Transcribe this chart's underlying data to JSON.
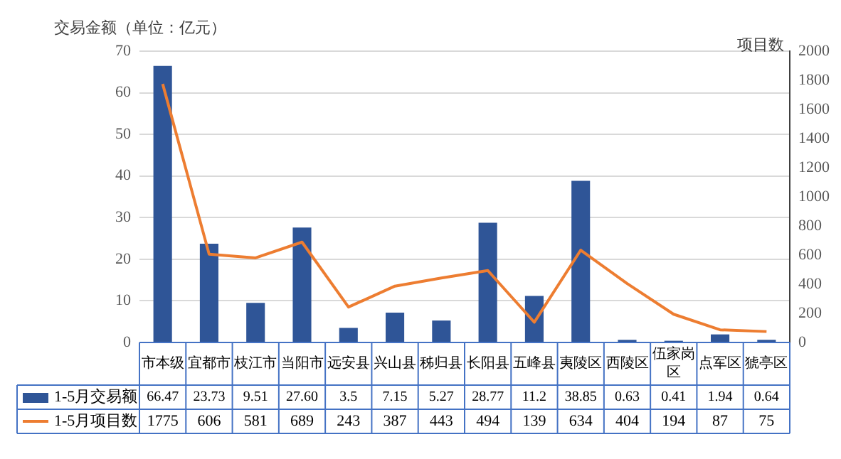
{
  "chart_data": {
    "type": "bar",
    "ylabel": "交易金额（单位：亿元）",
    "y2label": "项目数",
    "categories": [
      "市本级",
      "宜都市",
      "枝江市",
      "当阳市",
      "远安县",
      "兴山县",
      "秭归县",
      "长阳县",
      "五峰县",
      "夷陵区",
      "西陵区",
      "伍家岗区",
      "点军区",
      "猇亭区"
    ],
    "series": [
      {
        "name": "1-5月交易额",
        "color": "#2f5597",
        "values": [
          66.47,
          23.73,
          9.51,
          27.6,
          3.5,
          7.15,
          5.27,
          28.77,
          11.2,
          38.85,
          0.63,
          0.41,
          1.94,
          0.64
        ],
        "value_labels": [
          "66.47",
          "23.73",
          "9.51",
          "27.60",
          "3.5",
          "7.15",
          "5.27",
          "28.77",
          "11.2",
          "38.85",
          "0.63",
          "0.41",
          "1.94",
          "0.64"
        ]
      },
      {
        "name": "1-5月项目数",
        "type": "line",
        "axis": "y2",
        "color": "#ed7d31",
        "values": [
          1775,
          606,
          581,
          689,
          243,
          387,
          443,
          494,
          139,
          634,
          404,
          194,
          87,
          75
        ],
        "value_labels": [
          "1775",
          "606",
          "581",
          "689",
          "243",
          "387",
          "443",
          "494",
          "139",
          "634",
          "404",
          "194",
          "87",
          "75"
        ]
      }
    ],
    "ylim": [
      0,
      70
    ],
    "yticks": [
      0,
      10,
      20,
      30,
      40,
      50,
      60,
      70
    ],
    "y2lim": [
      0,
      2000
    ],
    "y2ticks": [
      0,
      200,
      400,
      600,
      800,
      1000,
      1200,
      1400,
      1600,
      1800,
      2000
    ],
    "grid": "y",
    "legend": "bottom"
  }
}
